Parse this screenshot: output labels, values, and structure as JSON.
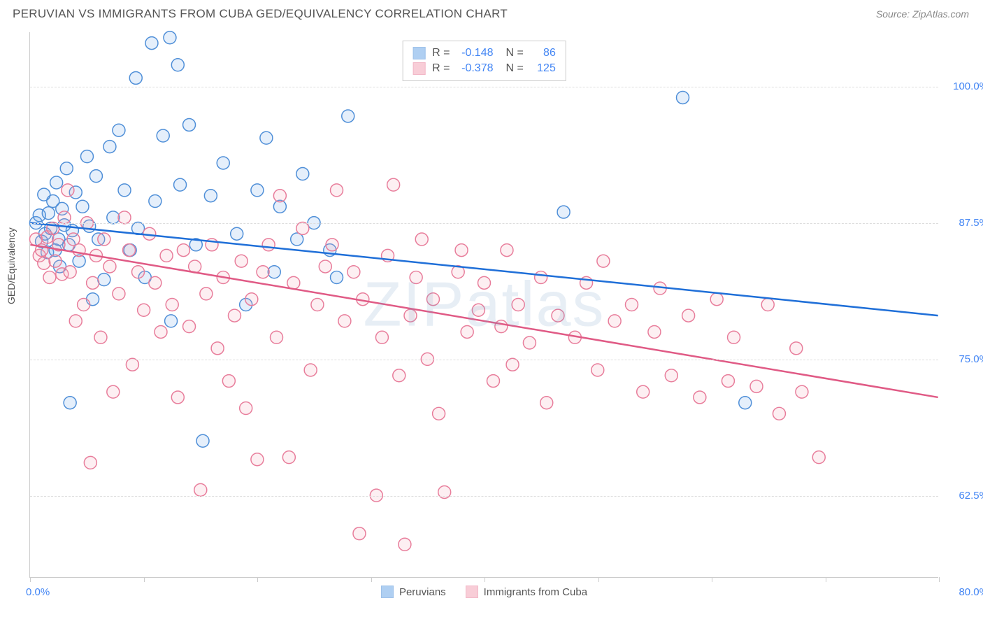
{
  "header": {
    "title": "PERUVIAN VS IMMIGRANTS FROM CUBA GED/EQUIVALENCY CORRELATION CHART",
    "source": "Source: ZipAtlas.com"
  },
  "chart": {
    "type": "scatter",
    "y_axis_label": "GED/Equivalency",
    "background_color": "#ffffff",
    "grid_color": "#dddddd",
    "axis_color": "#cccccc",
    "xlim": [
      0,
      80
    ],
    "ylim": [
      55,
      105
    ],
    "y_ticks": [
      {
        "value": 62.5,
        "label": "62.5%"
      },
      {
        "value": 75.0,
        "label": "75.0%"
      },
      {
        "value": 87.5,
        "label": "87.5%"
      },
      {
        "value": 100.0,
        "label": "100.0%"
      }
    ],
    "x_ticks_positions": [
      0,
      10,
      20,
      30,
      40,
      50,
      60,
      70,
      80
    ],
    "x_labels": [
      {
        "value": 0,
        "label": "0.0%"
      },
      {
        "value": 80,
        "label": "80.0%"
      }
    ],
    "label_color": "#4285f4",
    "label_fontsize": 15,
    "axis_label_fontsize": 14,
    "marker_radius": 9,
    "marker_stroke_width": 1.5,
    "marker_fill_opacity": 0.18,
    "trend_line_width": 2.5,
    "watermark_text": "ZIPatlas",
    "watermark_color": "rgba(120,160,200,0.18)",
    "series": [
      {
        "name": "Peruvians",
        "color": "#6fa8e8",
        "stroke_color": "#4f8fd8",
        "line_color": "#1f6fd8",
        "R": "-0.148",
        "N": "86",
        "trend": {
          "x1": 0,
          "y1": 87.5,
          "x2": 80,
          "y2": 79.0
        },
        "points": [
          [
            0.5,
            87.5
          ],
          [
            0.8,
            88.2
          ],
          [
            1.0,
            85.8
          ],
          [
            1.2,
            90.1
          ],
          [
            1.3,
            86.5
          ],
          [
            1.5,
            84.8
          ],
          [
            1.6,
            88.4
          ],
          [
            1.8,
            87.0
          ],
          [
            2.0,
            89.5
          ],
          [
            2.2,
            85.0
          ],
          [
            2.3,
            91.2
          ],
          [
            2.5,
            86.0
          ],
          [
            2.6,
            83.5
          ],
          [
            2.8,
            88.8
          ],
          [
            3.0,
            87.3
          ],
          [
            3.2,
            92.5
          ],
          [
            3.4,
            85.5
          ],
          [
            3.7,
            86.8
          ],
          [
            4.0,
            90.3
          ],
          [
            4.3,
            84.0
          ],
          [
            4.6,
            89.0
          ],
          [
            5.0,
            93.6
          ],
          [
            5.2,
            87.2
          ],
          [
            5.5,
            80.5
          ],
          [
            5.8,
            91.8
          ],
          [
            6.0,
            86.0
          ],
          [
            6.5,
            82.3
          ],
          [
            7.0,
            94.5
          ],
          [
            7.3,
            88.0
          ],
          [
            7.8,
            96.0
          ],
          [
            8.3,
            90.5
          ],
          [
            8.8,
            85.0
          ],
          [
            9.3,
            100.8
          ],
          [
            9.5,
            87.0
          ],
          [
            10.1,
            82.5
          ],
          [
            10.7,
            104.0
          ],
          [
            11.0,
            89.5
          ],
          [
            11.7,
            95.5
          ],
          [
            12.3,
            104.5
          ],
          [
            12.4,
            78.5
          ],
          [
            13.0,
            102.0
          ],
          [
            13.2,
            91.0
          ],
          [
            14.0,
            96.5
          ],
          [
            14.6,
            85.5
          ],
          [
            15.2,
            67.5
          ],
          [
            15.9,
            90.0
          ],
          [
            17.0,
            93.0
          ],
          [
            18.2,
            86.5
          ],
          [
            19.0,
            80.0
          ],
          [
            20.0,
            90.5
          ],
          [
            20.8,
            95.3
          ],
          [
            21.5,
            83.0
          ],
          [
            22.0,
            89.0
          ],
          [
            23.5,
            86.0
          ],
          [
            24.0,
            92.0
          ],
          [
            25.0,
            87.5
          ],
          [
            26.4,
            85.0
          ],
          [
            27.0,
            82.5
          ],
          [
            28.0,
            97.3
          ],
          [
            47.0,
            88.5
          ],
          [
            57.5,
            99.0
          ],
          [
            63.0,
            71.0
          ],
          [
            3.5,
            71.0
          ]
        ]
      },
      {
        "name": "Immigrants from Cuba",
        "color": "#f4a6b8",
        "stroke_color": "#e87d9b",
        "line_color": "#e05a85",
        "R": "-0.378",
        "N": "125",
        "trend": {
          "x1": 0,
          "y1": 85.5,
          "x2": 80,
          "y2": 71.5
        },
        "points": [
          [
            0.5,
            86.0
          ],
          [
            0.8,
            84.5
          ],
          [
            1.0,
            85.0
          ],
          [
            1.2,
            83.8
          ],
          [
            1.5,
            86.2
          ],
          [
            1.7,
            82.5
          ],
          [
            2.0,
            87.0
          ],
          [
            2.2,
            84.0
          ],
          [
            2.5,
            85.5
          ],
          [
            2.8,
            82.8
          ],
          [
            3.0,
            88.0
          ],
          [
            3.3,
            90.5
          ],
          [
            3.5,
            83.0
          ],
          [
            3.8,
            86.0
          ],
          [
            4.0,
            78.5
          ],
          [
            4.3,
            85.0
          ],
          [
            4.7,
            80.0
          ],
          [
            5.0,
            87.5
          ],
          [
            5.3,
            65.5
          ],
          [
            5.5,
            82.0
          ],
          [
            5.8,
            84.5
          ],
          [
            6.2,
            77.0
          ],
          [
            6.5,
            86.0
          ],
          [
            7.0,
            83.5
          ],
          [
            7.3,
            72.0
          ],
          [
            7.8,
            81.0
          ],
          [
            8.3,
            88.0
          ],
          [
            8.7,
            85.0
          ],
          [
            9.0,
            74.5
          ],
          [
            9.5,
            83.0
          ],
          [
            10.0,
            79.5
          ],
          [
            10.5,
            86.5
          ],
          [
            11.0,
            82.0
          ],
          [
            11.5,
            77.5
          ],
          [
            12.0,
            84.5
          ],
          [
            12.5,
            80.0
          ],
          [
            13.0,
            71.5
          ],
          [
            13.5,
            85.0
          ],
          [
            14.0,
            78.0
          ],
          [
            14.5,
            83.5
          ],
          [
            15.0,
            63.0
          ],
          [
            15.5,
            81.0
          ],
          [
            16.0,
            85.5
          ],
          [
            16.5,
            76.0
          ],
          [
            17.0,
            82.5
          ],
          [
            17.5,
            73.0
          ],
          [
            18.0,
            79.0
          ],
          [
            18.6,
            84.0
          ],
          [
            19.0,
            70.5
          ],
          [
            19.5,
            80.5
          ],
          [
            20.0,
            65.8
          ],
          [
            20.5,
            83.0
          ],
          [
            21.0,
            85.5
          ],
          [
            21.7,
            77.0
          ],
          [
            22.0,
            90.0
          ],
          [
            22.8,
            66.0
          ],
          [
            23.2,
            82.0
          ],
          [
            24.0,
            87.0
          ],
          [
            24.7,
            74.0
          ],
          [
            25.3,
            80.0
          ],
          [
            26.0,
            83.5
          ],
          [
            26.6,
            85.5
          ],
          [
            27.0,
            90.5
          ],
          [
            27.7,
            78.5
          ],
          [
            28.5,
            83.0
          ],
          [
            29.0,
            59.0
          ],
          [
            29.3,
            80.5
          ],
          [
            30.5,
            62.5
          ],
          [
            31.0,
            77.0
          ],
          [
            31.5,
            84.5
          ],
          [
            32.0,
            91.0
          ],
          [
            32.5,
            73.5
          ],
          [
            33.0,
            58.0
          ],
          [
            33.5,
            79.0
          ],
          [
            34.0,
            82.5
          ],
          [
            34.5,
            86.0
          ],
          [
            35.0,
            75.0
          ],
          [
            35.5,
            80.5
          ],
          [
            36.0,
            70.0
          ],
          [
            36.5,
            62.8
          ],
          [
            37.7,
            83.0
          ],
          [
            38.0,
            85.0
          ],
          [
            38.5,
            77.5
          ],
          [
            39.5,
            79.5
          ],
          [
            40.0,
            82.0
          ],
          [
            40.8,
            73.0
          ],
          [
            41.5,
            78.0
          ],
          [
            42.0,
            85.0
          ],
          [
            42.5,
            74.5
          ],
          [
            43.0,
            80.0
          ],
          [
            44.0,
            76.5
          ],
          [
            45.0,
            82.5
          ],
          [
            45.5,
            71.0
          ],
          [
            46.5,
            79.0
          ],
          [
            48.0,
            77.0
          ],
          [
            49.0,
            82.0
          ],
          [
            50.0,
            74.0
          ],
          [
            50.5,
            84.0
          ],
          [
            51.5,
            78.5
          ],
          [
            53.0,
            80.0
          ],
          [
            54.0,
            72.0
          ],
          [
            55.0,
            77.5
          ],
          [
            55.5,
            81.5
          ],
          [
            56.5,
            73.5
          ],
          [
            58.0,
            79.0
          ],
          [
            59.0,
            71.5
          ],
          [
            60.5,
            80.5
          ],
          [
            61.5,
            73.0
          ],
          [
            62.0,
            77.0
          ],
          [
            64.0,
            72.5
          ],
          [
            65.0,
            80.0
          ],
          [
            66.0,
            70.0
          ],
          [
            67.5,
            76.0
          ],
          [
            68.0,
            72.0
          ],
          [
            69.5,
            66.0
          ]
        ]
      }
    ],
    "legend_top": {
      "border_color": "#cccccc",
      "R_label": "R =",
      "N_label": "N ="
    },
    "legend_bottom": {
      "swatch_size": 18
    }
  }
}
